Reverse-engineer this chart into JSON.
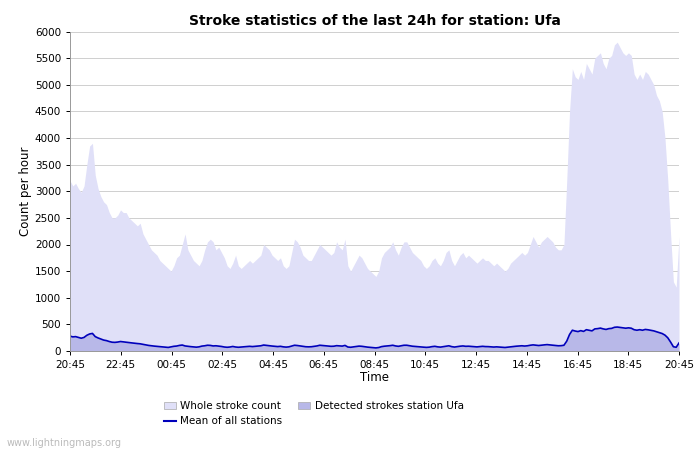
{
  "title": "Stroke statistics of the last 24h for station: Ufa",
  "xlabel": "Time",
  "ylabel": "Count per hour",
  "xlim_labels": [
    "20:45",
    "22:45",
    "00:45",
    "02:45",
    "04:45",
    "06:45",
    "08:45",
    "10:45",
    "12:45",
    "14:45",
    "16:45",
    "18:45",
    "20:45"
  ],
  "ylim": [
    0,
    6000
  ],
  "yticks": [
    0,
    500,
    1000,
    1500,
    2000,
    2500,
    3000,
    3500,
    4000,
    4500,
    5000,
    5500,
    6000
  ],
  "bg_color": "#ffffff",
  "grid_color": "#c8c8c8",
  "whole_stroke_color": "#e0e0f8",
  "detected_stroke_color": "#b8b8e8",
  "mean_line_color": "#0000bb",
  "watermark": "www.lightningmaps.org",
  "whole_stroke_y": [
    3200,
    3100,
    3150,
    3050,
    2980,
    3100,
    3500,
    3850,
    3900,
    3300,
    3050,
    2900,
    2800,
    2750,
    2600,
    2500,
    2500,
    2550,
    2650,
    2600,
    2600,
    2500,
    2450,
    2400,
    2350,
    2400,
    2200,
    2100,
    2000,
    1900,
    1850,
    1800,
    1700,
    1650,
    1600,
    1550,
    1500,
    1600,
    1750,
    1800,
    2000,
    2200,
    1900,
    1800,
    1700,
    1650,
    1600,
    1700,
    1900,
    2050,
    2100,
    2050,
    1900,
    1950,
    1850,
    1750,
    1600,
    1550,
    1650,
    1800,
    1600,
    1550,
    1600,
    1650,
    1700,
    1650,
    1700,
    1750,
    1800,
    2000,
    1950,
    1900,
    1800,
    1750,
    1700,
    1750,
    1600,
    1550,
    1600,
    1850,
    2100,
    2050,
    1950,
    1800,
    1750,
    1700,
    1700,
    1800,
    1900,
    2000,
    1950,
    1900,
    1850,
    1800,
    1850,
    2050,
    1950,
    1900,
    2100,
    1600,
    1500,
    1600,
    1700,
    1800,
    1750,
    1650,
    1550,
    1500,
    1450,
    1400,
    1500,
    1750,
    1850,
    1900,
    1950,
    2050,
    1900,
    1800,
    1950,
    2050,
    2050,
    1950,
    1850,
    1800,
    1750,
    1700,
    1600,
    1550,
    1600,
    1700,
    1750,
    1650,
    1600,
    1700,
    1850,
    1900,
    1700,
    1600,
    1700,
    1800,
    1850,
    1750,
    1800,
    1750,
    1700,
    1650,
    1700,
    1750,
    1700,
    1700,
    1650,
    1600,
    1650,
    1600,
    1550,
    1500,
    1550,
    1650,
    1700,
    1750,
    1800,
    1850,
    1800,
    1850,
    2000,
    2150,
    2050,
    1950,
    2050,
    2100,
    2150,
    2100,
    2050,
    1950,
    1900,
    1900,
    2000,
    3200,
    4500,
    5300,
    5150,
    5100,
    5250,
    5100,
    5400,
    5300,
    5200,
    5500,
    5550,
    5600,
    5400,
    5300,
    5500,
    5550,
    5750,
    5800,
    5700,
    5600,
    5550,
    5600,
    5550,
    5200,
    5100,
    5200,
    5100,
    5250,
    5200,
    5100,
    5000,
    4800,
    4700,
    4500,
    4000,
    3200,
    2200,
    1300,
    1200,
    2150
  ],
  "detected_y": [
    280,
    265,
    270,
    255,
    240,
    255,
    295,
    320,
    330,
    270,
    245,
    225,
    205,
    195,
    178,
    165,
    162,
    168,
    178,
    172,
    168,
    158,
    152,
    145,
    140,
    135,
    125,
    115,
    105,
    98,
    92,
    87,
    82,
    77,
    72,
    67,
    78,
    88,
    93,
    105,
    112,
    95,
    88,
    82,
    77,
    72,
    78,
    92,
    98,
    108,
    105,
    95,
    98,
    92,
    85,
    75,
    70,
    75,
    85,
    75,
    70,
    74,
    78,
    83,
    88,
    83,
    88,
    93,
    98,
    112,
    105,
    100,
    93,
    88,
    83,
    88,
    78,
    73,
    78,
    93,
    108,
    103,
    95,
    85,
    80,
    78,
    80,
    88,
    95,
    108,
    103,
    98,
    92,
    88,
    90,
    100,
    95,
    92,
    105,
    75,
    70,
    78,
    85,
    92,
    88,
    80,
    73,
    68,
    63,
    58,
    65,
    82,
    90,
    95,
    100,
    108,
    95,
    88,
    98,
    108,
    108,
    98,
    90,
    85,
    80,
    77,
    72,
    68,
    72,
    82,
    88,
    78,
    73,
    82,
    92,
    98,
    82,
    74,
    82,
    90,
    95,
    88,
    90,
    85,
    80,
    77,
    82,
    88,
    83,
    82,
    78,
    74,
    78,
    75,
    70,
    66,
    72,
    80,
    85,
    90,
    93,
    98,
    93,
    98,
    108,
    115,
    110,
    103,
    110,
    115,
    120,
    115,
    110,
    103,
    98,
    100,
    108,
    185,
    310,
    390,
    375,
    365,
    382,
    368,
    400,
    390,
    378,
    415,
    420,
    430,
    415,
    405,
    420,
    425,
    445,
    450,
    442,
    432,
    428,
    435,
    428,
    400,
    390,
    400,
    390,
    405,
    398,
    388,
    378,
    362,
    348,
    328,
    298,
    248,
    168,
    80,
    70,
    150
  ],
  "mean_y": [
    280,
    265,
    270,
    255,
    240,
    255,
    295,
    320,
    330,
    270,
    245,
    225,
    205,
    195,
    178,
    165,
    162,
    168,
    178,
    172,
    168,
    158,
    152,
    145,
    140,
    135,
    125,
    115,
    105,
    98,
    92,
    87,
    82,
    77,
    72,
    67,
    78,
    88,
    93,
    105,
    112,
    95,
    88,
    82,
    77,
    72,
    78,
    92,
    98,
    108,
    105,
    95,
    98,
    92,
    85,
    75,
    70,
    75,
    85,
    75,
    70,
    74,
    78,
    83,
    88,
    83,
    88,
    93,
    98,
    112,
    105,
    100,
    93,
    88,
    83,
    88,
    78,
    73,
    78,
    93,
    108,
    103,
    95,
    85,
    80,
    78,
    80,
    88,
    95,
    108,
    103,
    98,
    92,
    88,
    90,
    100,
    95,
    92,
    105,
    75,
    70,
    78,
    85,
    92,
    88,
    80,
    73,
    68,
    63,
    58,
    65,
    82,
    90,
    95,
    100,
    108,
    95,
    88,
    98,
    108,
    108,
    98,
    90,
    85,
    80,
    77,
    72,
    68,
    72,
    82,
    88,
    78,
    73,
    82,
    92,
    98,
    82,
    74,
    82,
    90,
    95,
    88,
    90,
    85,
    80,
    77,
    82,
    88,
    83,
    82,
    78,
    74,
    78,
    75,
    70,
    66,
    72,
    80,
    85,
    90,
    93,
    98,
    93,
    98,
    108,
    115,
    110,
    103,
    110,
    115,
    120,
    115,
    110,
    103,
    98,
    100,
    108,
    185,
    310,
    390,
    375,
    365,
    382,
    368,
    400,
    390,
    378,
    415,
    420,
    430,
    415,
    405,
    420,
    425,
    445,
    450,
    442,
    432,
    428,
    435,
    428,
    400,
    390,
    400,
    390,
    405,
    398,
    388,
    378,
    362,
    348,
    328,
    298,
    248,
    168,
    80,
    70,
    150
  ]
}
